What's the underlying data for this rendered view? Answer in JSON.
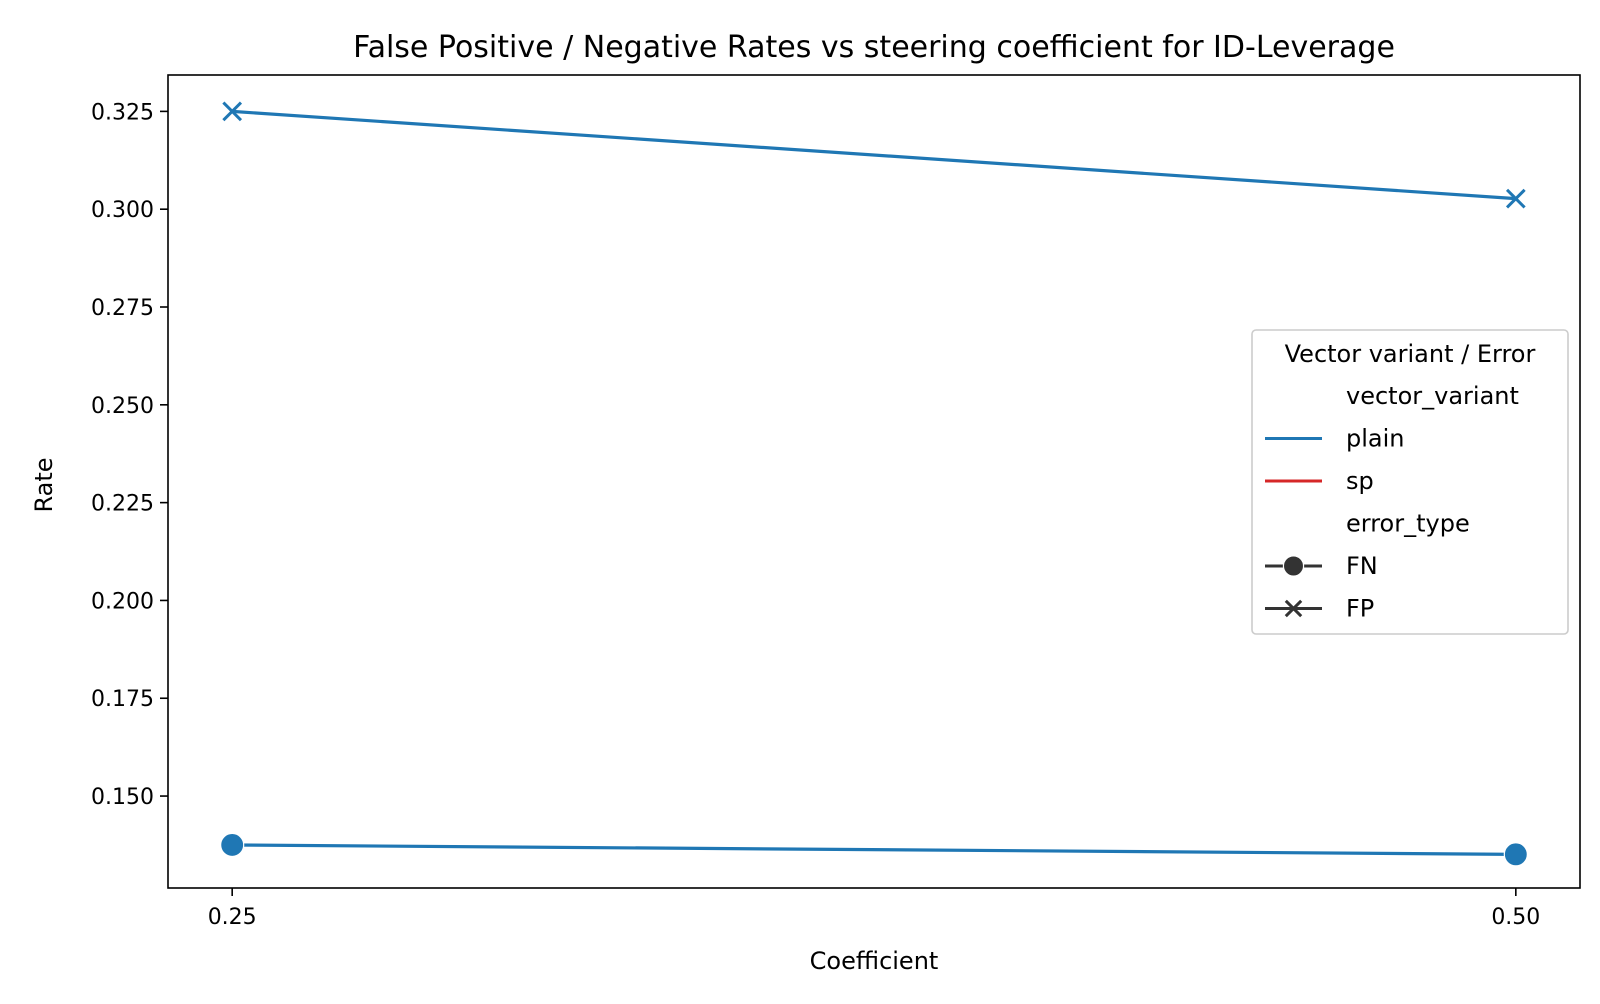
{
  "chart_data": {
    "type": "line",
    "title": "False Positive / Negative Rates vs steering coefficient for ID-Leverage",
    "xlabel": "Coefficient",
    "ylabel": "Rate",
    "x": [
      0.25,
      0.5
    ],
    "x_tick_labels": [
      "0.25",
      "0.50"
    ],
    "xlim": [
      0.2375,
      0.5125
    ],
    "ylim": [
      0.1265,
      0.3343
    ],
    "y_ticks": [
      0.15,
      0.175,
      0.2,
      0.225,
      0.25,
      0.275,
      0.3,
      0.325
    ],
    "y_tick_labels": [
      "0.150",
      "0.175",
      "0.200",
      "0.225",
      "0.250",
      "0.275",
      "0.300",
      "0.325"
    ],
    "grid": false,
    "series": [
      {
        "vector_variant": "plain",
        "error_type": "FP",
        "color": "#1f77b4",
        "marker": "x",
        "values": [
          0.325,
          0.3027
        ]
      },
      {
        "vector_variant": "plain",
        "error_type": "FN",
        "color": "#1f77b4",
        "marker": "circle",
        "values": [
          0.1375,
          0.1351
        ]
      }
    ],
    "legend": {
      "placement": "center-right",
      "title": "Vector variant / Error",
      "entries": [
        {
          "label": "vector_variant",
          "kind": "header"
        },
        {
          "label": "plain",
          "kind": "line",
          "color": "#1f77b4"
        },
        {
          "label": "sp",
          "kind": "line",
          "color": "#d62728"
        },
        {
          "label": "error_type",
          "kind": "header"
        },
        {
          "label": "FN",
          "kind": "marker",
          "marker": "circle",
          "color": "#333333"
        },
        {
          "label": "FP",
          "kind": "marker",
          "marker": "x",
          "color": "#333333"
        }
      ]
    }
  }
}
